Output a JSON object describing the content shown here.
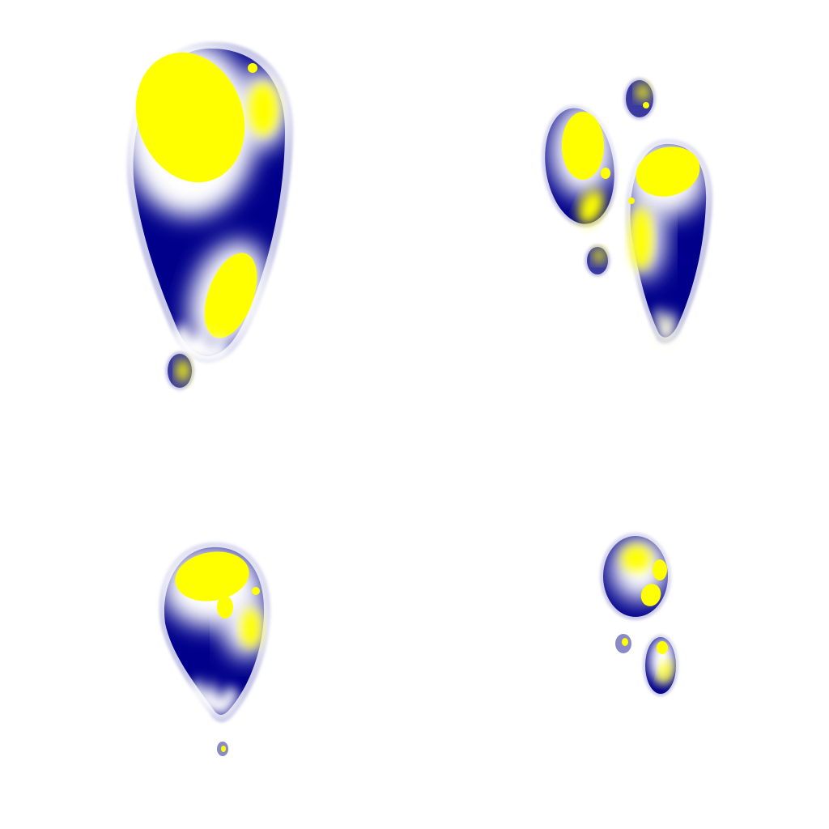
{
  "image": {
    "description_kind": "abstract-blob-pattern",
    "colors": {
      "background": "#ffffff",
      "dark": "#00008b",
      "mid": "#5a5ab0",
      "glow": "#f4f4dc",
      "core": "#ffff00"
    },
    "quadrants": [
      {
        "name": "top-left-cluster",
        "blob_count": 2
      },
      {
        "name": "top-right-cluster",
        "blob_count": 4
      },
      {
        "name": "bottom-left-cluster",
        "blob_count": 2
      },
      {
        "name": "bottom-right-cluster",
        "blob_count": 3
      }
    ]
  }
}
